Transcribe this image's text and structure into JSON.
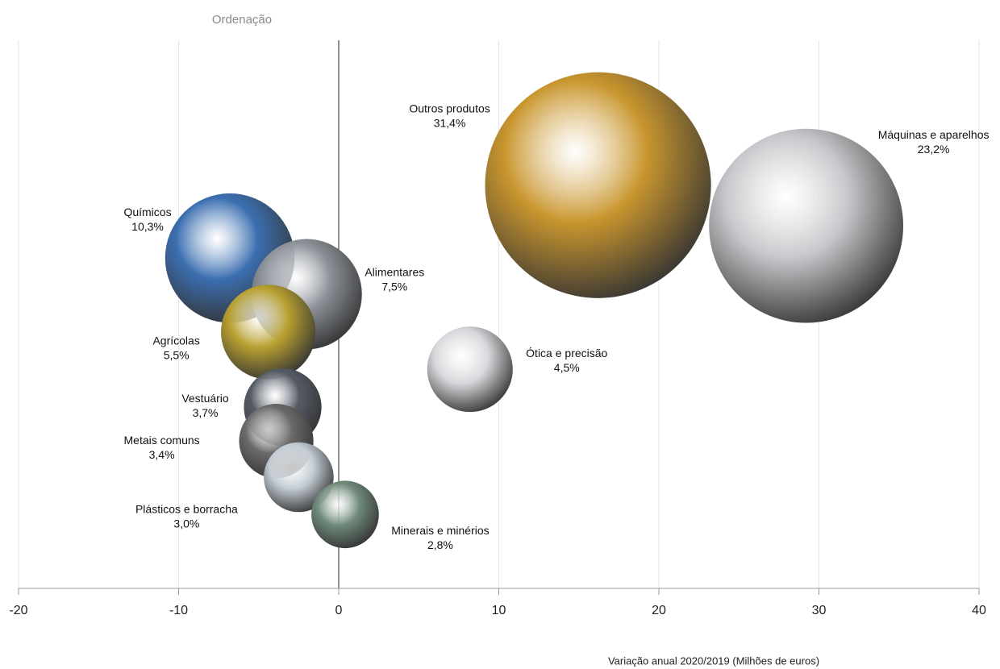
{
  "chart_data": {
    "type": "bubble",
    "y_axis_label": "Ordenação",
    "x_axis_label": "Variação anual 2020/2019 (Milhões de euros)",
    "categories": [
      "Outros produtos",
      "Máquinas e aparelhos",
      "Químicos",
      "Alimentares",
      "Agrícolas",
      "Ótica e precisão",
      "Vestuário",
      "Metais comuns",
      "Plásticos e borracha",
      "Minerais e minérios"
    ],
    "x": [
      16.2,
      29.2,
      -6.8,
      -2.0,
      -4.4,
      8.2,
      -3.5,
      -3.9,
      -2.5,
      0.4
    ],
    "y": [
      72.5,
      65.2,
      59.4,
      52.9,
      46.1,
      39.4,
      32.6,
      26.5,
      20.0,
      13.3
    ],
    "values": [
      31.4,
      23.2,
      10.3,
      7.5,
      5.5,
      4.5,
      3.7,
      3.4,
      3.0,
      2.8
    ],
    "value_labels": [
      "31,4%",
      "23,2%",
      "10,3%",
      "7,5%",
      "5,5%",
      "4,5%",
      "3,7%",
      "3,4%",
      "3,0%",
      "2,8%"
    ],
    "colors": [
      "#c9962e",
      "#c8c8cc",
      "#3b6fb0",
      "#8c9198",
      "#b8a030",
      "#d8d8dc",
      "#555b66",
      "#6a6a6a",
      "#c4ccd4",
      "#6f8a7a"
    ],
    "xlim": [
      -20,
      40
    ],
    "ylim": [
      0,
      100
    ],
    "xticks": [
      -20,
      -10,
      0,
      10,
      20,
      30,
      40
    ],
    "grid": true
  }
}
